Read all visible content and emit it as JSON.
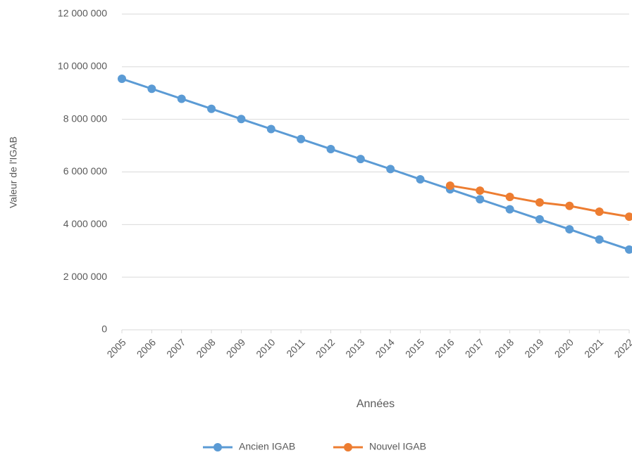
{
  "chart_data": {
    "type": "line",
    "y_label": "Valeur de l'IGAB",
    "x_label": "Années",
    "categories": [
      "2005",
      "2006",
      "2007",
      "2008",
      "2009",
      "2010",
      "2011",
      "2012",
      "2013",
      "2014",
      "2015",
      "2016",
      "2017",
      "2018",
      "2019",
      "2020",
      "2021",
      "2022"
    ],
    "series": [
      {
        "name": "Ancien IGAB",
        "color": "#5b9bd5",
        "values": [
          9540000,
          9160000,
          8780000,
          8400000,
          8010000,
          7630000,
          7250000,
          6870000,
          6490000,
          6110000,
          5720000,
          5340000,
          4960000,
          4580000,
          4200000,
          3820000,
          3430000,
          3050000
        ]
      },
      {
        "name": "Nouvel IGAB",
        "color": "#ed7d31",
        "values": [
          null,
          null,
          null,
          null,
          null,
          null,
          null,
          null,
          null,
          null,
          null,
          5480000,
          5290000,
          5050000,
          4840000,
          4710000,
          4490000,
          4300000
        ]
      }
    ],
    "ylim": [
      0,
      12000000
    ],
    "yticks": [
      0,
      {
        "value": 2000000,
        "label": "2 000 000"
      },
      {
        "value": 4000000,
        "label": "4 000 000"
      },
      {
        "value": 6000000,
        "label": "6 000 000"
      },
      {
        "value": 8000000,
        "label": "8 000 000"
      },
      {
        "value": 10000000,
        "label": "10 000 000"
      },
      {
        "value": 12000000,
        "label": "12 000 000"
      }
    ],
    "grid": true,
    "legend": "bottom"
  }
}
